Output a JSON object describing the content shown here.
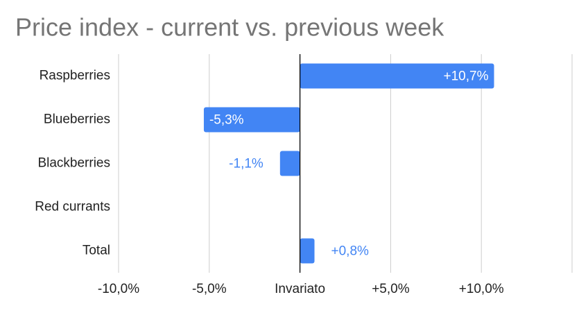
{
  "chart_data": {
    "type": "bar",
    "orientation": "horizontal",
    "title": "Price index - current vs. previous week",
    "categories": [
      "Raspberries",
      "Blueberries",
      "Blackberries",
      "Red currants",
      "Total"
    ],
    "values": [
      10.7,
      -5.3,
      -1.1,
      null,
      0.8
    ],
    "value_labels": [
      "+10,7%",
      "-5,3%",
      "-1,1%",
      null,
      "+0,8%"
    ],
    "color": "#4285f4",
    "xlim": [
      -10,
      15
    ],
    "xticks": [
      {
        "value": -10,
        "label": "-10,0%"
      },
      {
        "value": -5,
        "label": "-5,0%"
      },
      {
        "value": 0,
        "label": "Invariato"
      },
      {
        "value": 5,
        "label": "+5,0%"
      },
      {
        "value": 10,
        "label": "+10,0%"
      }
    ],
    "grid": true
  }
}
